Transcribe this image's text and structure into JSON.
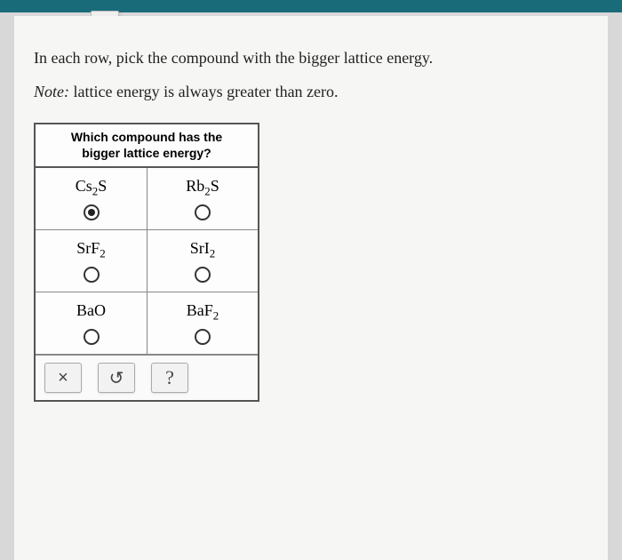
{
  "colors": {
    "top_bar": "#1a6b7a",
    "outer_bg": "#d8d8d8",
    "page_bg": "#f6f6f4",
    "table_border": "#555555",
    "cell_border": "#888888",
    "text": "#222222"
  },
  "instruction": "In each row, pick the compound with the bigger lattice energy.",
  "note_prefix": "Note:",
  "note_body": " lattice energy is always greater than zero.",
  "table": {
    "header_line1": "Which compound has the",
    "header_line2": "bigger lattice energy?",
    "rows": [
      {
        "left_html": "Cs<sub>2</sub>S",
        "right_html": "Rb<sub>2</sub>S",
        "selected": "left"
      },
      {
        "left_html": "SrF<sub>2</sub>",
        "right_html": "SrI<sub>2</sub>",
        "selected": null
      },
      {
        "left_html": "BaO",
        "right_html": "BaF<sub>2</sub>",
        "selected": null
      }
    ]
  },
  "buttons": {
    "close": "×",
    "reset": "↺",
    "help": "?"
  },
  "dropdown_icon": "chevron-down"
}
